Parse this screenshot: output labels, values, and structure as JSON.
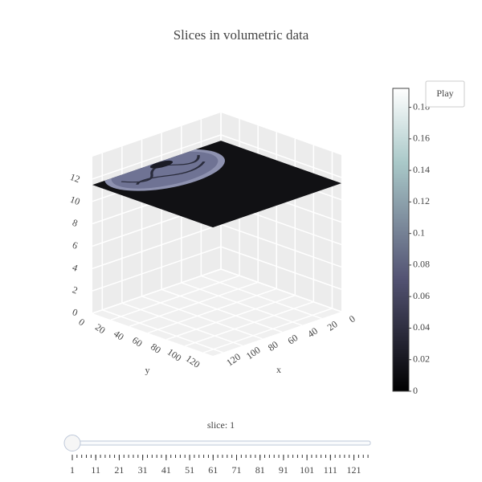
{
  "chart_data": {
    "type": "volume-slices",
    "title": "Slices in volumetric data",
    "xaxis_title": "x",
    "yaxis_title": "y",
    "xlim": [
      0,
      130
    ],
    "ylim": [
      0,
      130
    ],
    "zlim": [
      0,
      14
    ],
    "xticks": [
      0,
      20,
      40,
      60,
      80,
      100,
      120
    ],
    "yticks": [
      0,
      20,
      40,
      60,
      80,
      100,
      120
    ],
    "zticks": [
      0,
      2,
      4,
      6,
      8,
      10,
      12
    ],
    "grid": true,
    "colorscale": [
      [
        0,
        "#000000"
      ],
      [
        0.376,
        "#545474"
      ],
      [
        0.753,
        "#a9c8c8"
      ],
      [
        1,
        "#ffffff"
      ]
    ],
    "colorbar": {
      "lim": [
        0,
        0.192
      ],
      "ticks": [
        0,
        0.02,
        0.04,
        0.06,
        0.08,
        0.1,
        0.12,
        0.14,
        0.16,
        0.18
      ]
    },
    "play_button": "Play",
    "slider": {
      "label": "slice: 1",
      "value": 1,
      "lim": [
        1,
        128
      ],
      "minor_dtick": 2,
      "ticks": [
        1,
        11,
        21,
        31,
        41,
        51,
        61,
        71,
        81,
        91,
        101,
        111,
        121
      ]
    }
  }
}
